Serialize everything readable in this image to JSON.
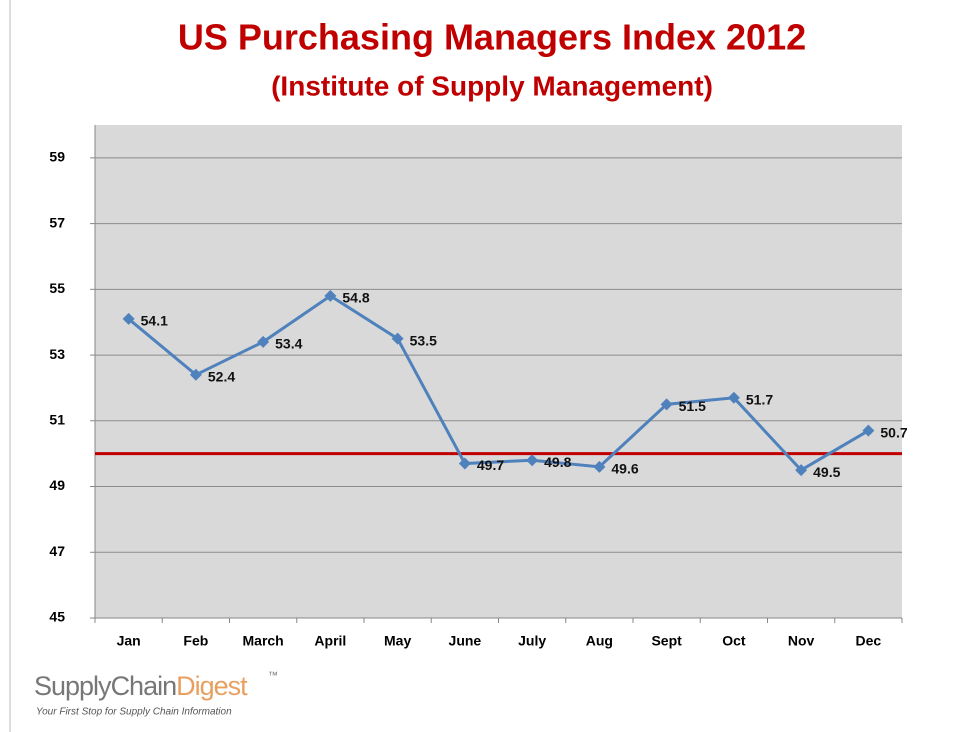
{
  "chart_data": {
    "type": "line",
    "title": "US Purchasing Managers Index 2012",
    "subtitle": "(Institute of Supply Management)",
    "categories": [
      "Jan",
      "Feb",
      "March",
      "April",
      "May",
      "June",
      "July",
      "Aug",
      "Sept",
      "Oct",
      "Nov",
      "Dec"
    ],
    "values": [
      54.1,
      52.4,
      53.4,
      54.8,
      53.5,
      49.7,
      49.8,
      49.6,
      51.5,
      51.7,
      49.5,
      50.7
    ],
    "color": "#4f81bd",
    "ylim": [
      45,
      60
    ],
    "yticks": [
      45,
      47,
      49,
      51,
      53,
      55,
      57,
      59
    ],
    "grid": true,
    "reference_line": {
      "value": 50,
      "color": "#c00000"
    }
  },
  "branding": {
    "logo": [
      "Supply",
      "Chain",
      "Digest"
    ],
    "trademark": "™",
    "tagline": "Your First Stop for Supply Chain Information"
  }
}
